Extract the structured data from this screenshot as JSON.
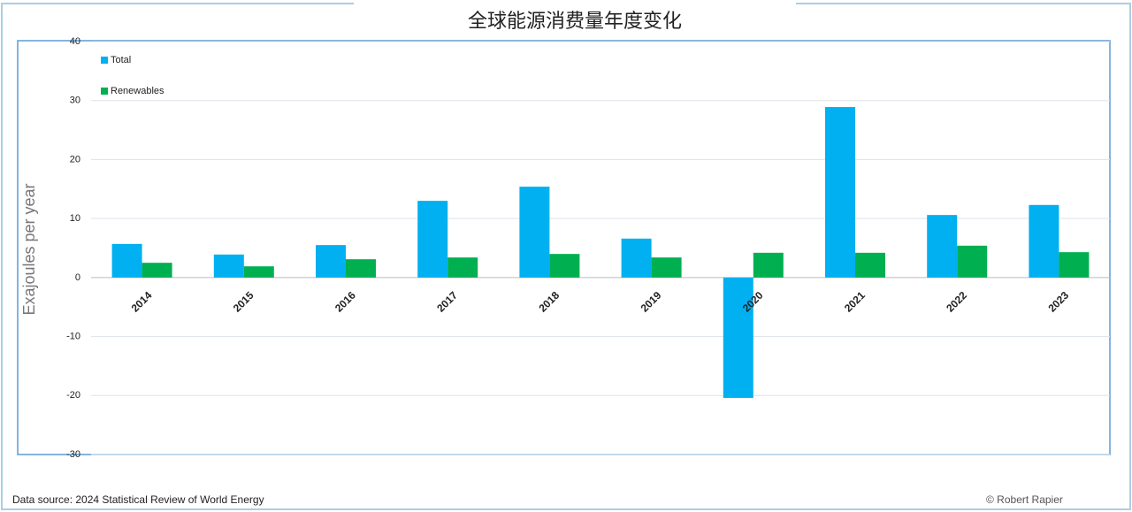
{
  "chart_data": {
    "type": "bar",
    "title": "全球能源消费量年度变化",
    "y_label": "Exajoules per year",
    "categories": [
      "2014",
      "2015",
      "2016",
      "2017",
      "2018",
      "2019",
      "2020",
      "2021",
      "2022",
      "2023"
    ],
    "series": [
      {
        "name": "Total",
        "color": "#00b0f0",
        "values": [
          5.7,
          3.9,
          5.5,
          13.0,
          15.4,
          6.6,
          -20.4,
          28.9,
          10.6,
          12.3
        ]
      },
      {
        "name": "Renewables",
        "color": "#00b050",
        "values": [
          2.5,
          1.9,
          3.1,
          3.4,
          4.0,
          3.4,
          4.2,
          4.2,
          5.4,
          4.3
        ]
      }
    ],
    "ylim": [
      -30,
      40
    ],
    "yticks": [
      -30,
      -20,
      -10,
      0,
      10,
      20,
      30,
      40
    ],
    "grid": true,
    "legend": "top-left",
    "source": "Data source: 2024 Statistical Review of World Energy",
    "credit": "© Robert Rapier"
  }
}
